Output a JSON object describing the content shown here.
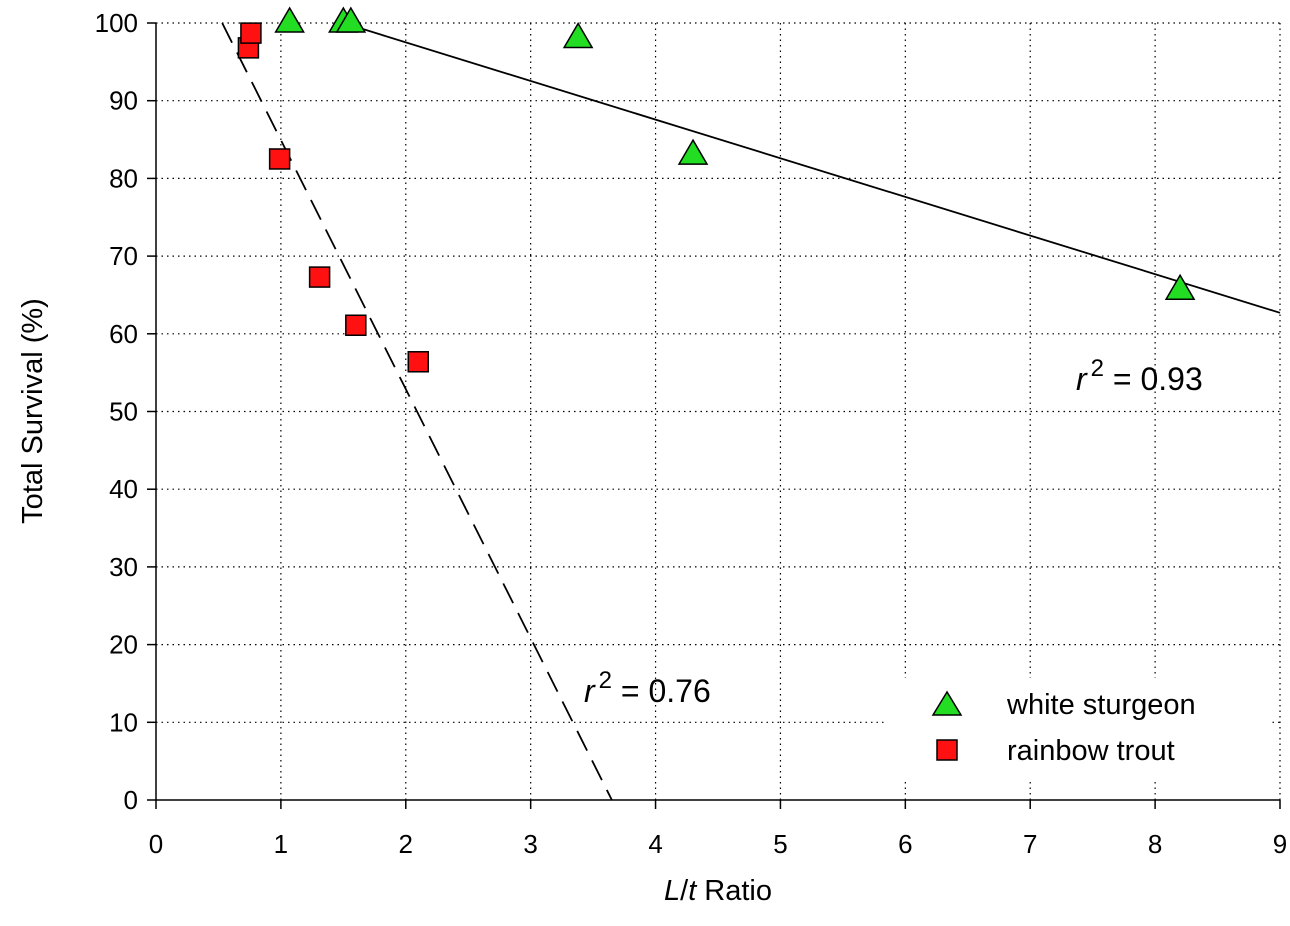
{
  "chart_data": {
    "type": "scatter",
    "xlabel": {
      "var": "L",
      "sep": "/",
      "var2": "t",
      "rest": " Ratio"
    },
    "ylabel": "Total Survival (%)",
    "xlim": [
      0,
      9
    ],
    "ylim": [
      0,
      100
    ],
    "xticks": [
      "0",
      "1",
      "2",
      "3",
      "4",
      "5",
      "6",
      "7",
      "8",
      "9"
    ],
    "yticks": [
      "0",
      "10",
      "20",
      "30",
      "40",
      "50",
      "60",
      "70",
      "80",
      "90",
      "100"
    ],
    "grid": true,
    "grid_style": "dotted",
    "legend_position": "bottom-right",
    "series": [
      {
        "name": "white sturgeon",
        "marker": "triangle",
        "color": "#22dd22",
        "points": [
          [
            1.07,
            100
          ],
          [
            1.5,
            100
          ],
          [
            1.56,
            100
          ],
          [
            3.38,
            98
          ],
          [
            4.3,
            83
          ],
          [
            8.2,
            65.6
          ]
        ],
        "trendline": {
          "style": "solid",
          "x": [
            1.5,
            9
          ],
          "y": [
            100,
            62.7
          ]
        },
        "r2_label": {
          "prefix": "r",
          "sup": "2",
          "text": " = 0.93"
        }
      },
      {
        "name": "rainbow trout",
        "marker": "square",
        "color": "#ff1111",
        "points": [
          [
            0.74,
            96.8
          ],
          [
            0.76,
            98.7
          ],
          [
            0.99,
            82.5
          ],
          [
            1.31,
            67.3
          ],
          [
            1.6,
            61.1
          ],
          [
            2.1,
            56.4
          ]
        ],
        "trendline": {
          "style": "dashed",
          "x": [
            0.53,
            3.65
          ],
          "y": [
            100,
            0
          ]
        },
        "r2_label": {
          "prefix": "r",
          "sup": "2",
          "text": " = 0.76"
        }
      }
    ]
  }
}
